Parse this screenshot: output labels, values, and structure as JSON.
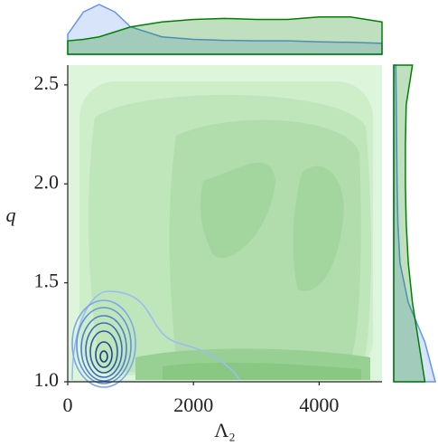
{
  "chart_data": {
    "type": "kde_joint",
    "xlabel": "Λ₂",
    "ylabel": "q",
    "xlim": [
      0,
      5000
    ],
    "ylim": [
      1.0,
      2.6
    ],
    "xticks": [
      0,
      2000,
      4000
    ],
    "yticks": [
      {
        "value": 1,
        "label": "1.0"
      },
      {
        "value": 1.5,
        "label": "1.5"
      },
      {
        "value": 2,
        "label": "2.0"
      },
      {
        "value": 2.5,
        "label": "2.5"
      }
    ],
    "top_marginal": {
      "x": [
        0,
        250,
        500,
        750,
        1000,
        1500,
        2000,
        2500,
        3000,
        3500,
        4000,
        4500,
        5000
      ],
      "series": [
        {
          "color": "#6495ed",
          "values": [
            0.4,
            0.85,
            1.0,
            0.85,
            0.55,
            0.35,
            0.3,
            0.28,
            0.27,
            0.27,
            0.25,
            0.24,
            0.22
          ]
        },
        {
          "color": "#008000",
          "values": [
            0.27,
            0.3,
            0.35,
            0.45,
            0.55,
            0.65,
            0.7,
            0.72,
            0.7,
            0.7,
            0.75,
            0.75,
            0.65
          ]
        }
      ]
    },
    "right_marginal": {
      "y": [
        1.0,
        1.2,
        1.4,
        1.6,
        1.8,
        2.0,
        2.2,
        2.4,
        2.6
      ],
      "series": [
        {
          "color": "#6495ed",
          "values": [
            1.0,
            0.75,
            0.35,
            0.15,
            0.1,
            0.08,
            0.07,
            0.06,
            0.05
          ]
        },
        {
          "color": "#008000",
          "values": [
            0.75,
            0.6,
            0.45,
            0.35,
            0.3,
            0.28,
            0.28,
            0.3,
            0.45
          ]
        }
      ]
    }
  }
}
